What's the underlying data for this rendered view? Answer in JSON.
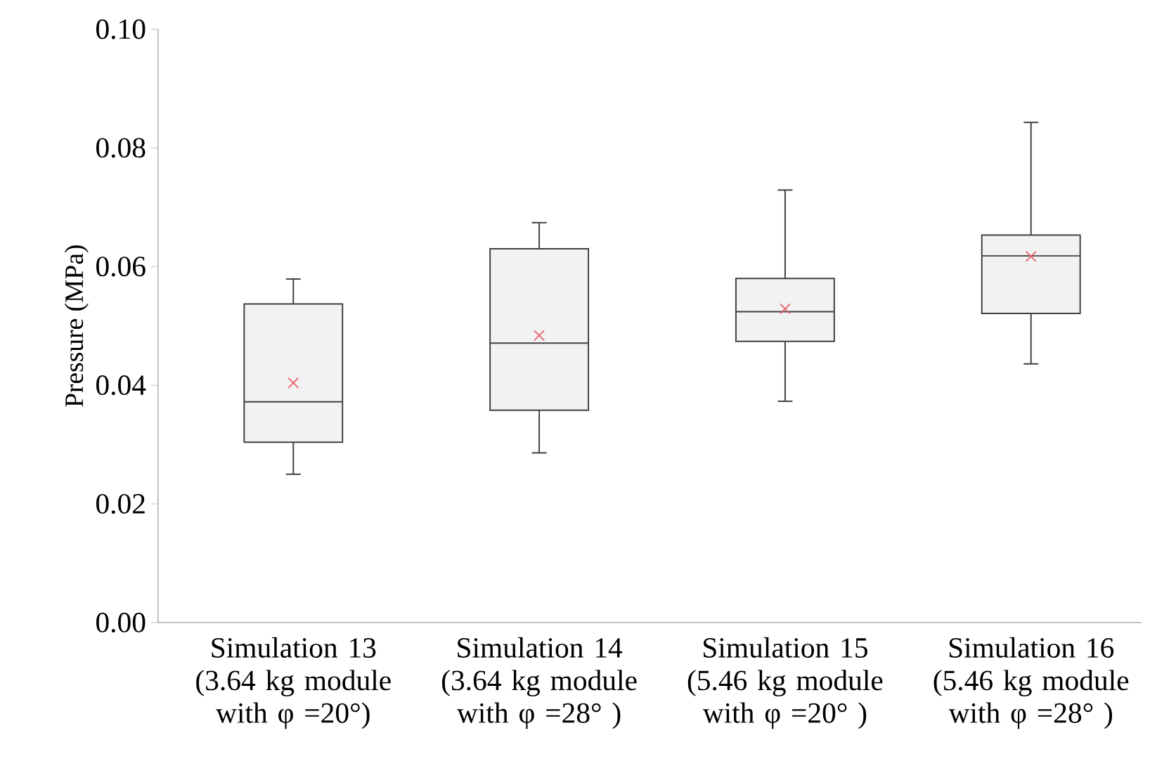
{
  "chart_data": {
    "type": "box",
    "ylabel": "Pressure (MPa)",
    "categories": [
      "Simulation 13 (3.64 kg module with φ =20°)",
      "Simulation 14 (3.64 kg module with φ =28° )",
      "Simulation 15 (5.46 kg module with φ =20° )",
      "Simulation 16 (5.46 kg module with φ =28° )"
    ],
    "color": "#f2f2f2",
    "boxes": [
      {
        "low": 0.025,
        "q1": 0.0304,
        "median": 0.0372,
        "q3": 0.0537,
        "high": 0.0579,
        "mean": 0.0404
      },
      {
        "low": 0.0286,
        "q1": 0.0358,
        "median": 0.0471,
        "q3": 0.063,
        "high": 0.0674,
        "mean": 0.0484
      },
      {
        "low": 0.0373,
        "q1": 0.0474,
        "median": 0.0524,
        "q3": 0.058,
        "high": 0.0729,
        "mean": 0.0529
      },
      {
        "low": 0.0436,
        "q1": 0.0521,
        "median": 0.0618,
        "q3": 0.0653,
        "high": 0.0843,
        "mean": 0.0617
      }
    ],
    "ylim": [
      0,
      0.1
    ],
    "yticks": [
      {
        "value": 0,
        "label": "0.00"
      },
      {
        "value": 0.02,
        "label": "0.02"
      },
      {
        "value": 0.04,
        "label": "0.04"
      },
      {
        "value": 0.06,
        "label": "0.06"
      },
      {
        "value": 0.08,
        "label": "0.08"
      },
      {
        "value": 0.1,
        "label": "0.10"
      }
    ],
    "grid": false
  }
}
